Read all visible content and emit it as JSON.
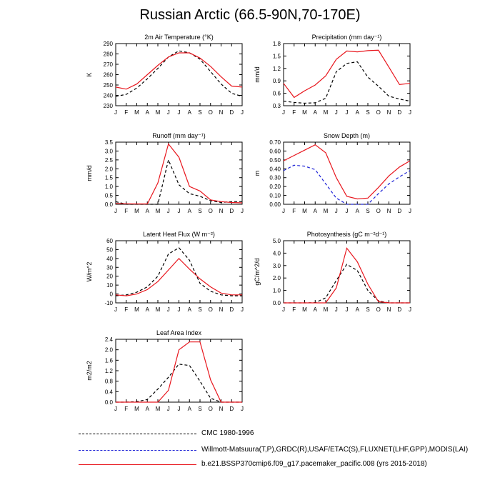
{
  "title": "Russian Arctic (66.5-90N,70-170E)",
  "colors": {
    "cmc": "#000000",
    "obs": "#1f24d6",
    "model": "#e8161d"
  },
  "legend": [
    {
      "key": "cmc",
      "label": "CMC 1980-1996",
      "dash": "dashed"
    },
    {
      "key": "obs",
      "label": "Willmott-Matsuura(T,P),GRDC(R),USAF/ETAC(S),FLUXNET(LHF,GPP),MODIS(LAI)",
      "dash": "dashed"
    },
    {
      "key": "model",
      "label": "b.e21.BSSP370cmip6.f09_g17.pacemaker_pacific.008 (yrs 2015-2018)",
      "dash": "solid"
    }
  ],
  "chart_data": [
    {
      "type": "line",
      "title": "2m Air Temperature (°K)",
      "ylabel": "K",
      "ylim": [
        230,
        290
      ],
      "yticks": [
        "230",
        "240",
        "250",
        "260",
        "270",
        "280",
        "290"
      ],
      "x": [
        "J",
        "F",
        "M",
        "A",
        "M",
        "J",
        "J",
        "A",
        "S",
        "O",
        "N",
        "D",
        "J"
      ],
      "grid": false,
      "series": [
        {
          "key": "cmc",
          "values": [
            239,
            241,
            247,
            256,
            266,
            277,
            283,
            281,
            275,
            263,
            251,
            242,
            239
          ]
        },
        {
          "key": "model",
          "values": [
            248,
            246,
            251,
            260,
            269,
            277,
            281,
            281,
            276,
            268,
            258,
            249,
            248
          ]
        }
      ]
    },
    {
      "type": "line",
      "title": "Precipitation (mm day⁻¹)",
      "ylabel": "mm/d",
      "ylim": [
        0.3,
        1.8
      ],
      "yticks": [
        "0.3",
        "0.6",
        "0.9",
        "1.2",
        "1.5",
        "1.8"
      ],
      "x": [
        "J",
        "F",
        "M",
        "A",
        "M",
        "J",
        "J",
        "A",
        "S",
        "O",
        "N",
        "D",
        "J"
      ],
      "grid": false,
      "series": [
        {
          "key": "cmc",
          "values": [
            0.41,
            0.38,
            0.36,
            0.37,
            0.48,
            1.12,
            1.32,
            1.36,
            0.99,
            0.77,
            0.53,
            0.46,
            0.41
          ]
        },
        {
          "key": "model",
          "values": [
            0.84,
            0.5,
            0.66,
            0.8,
            1.02,
            1.42,
            1.62,
            1.6,
            1.63,
            1.64,
            1.23,
            0.81,
            0.84
          ]
        }
      ]
    },
    {
      "type": "line",
      "title": "Runoff (mm day⁻¹)",
      "ylabel": "mm/d",
      "ylim": [
        0,
        3.5
      ],
      "yticks": [
        "0.0",
        "0.5",
        "1.0",
        "1.5",
        "2.0",
        "2.5",
        "3.0",
        "3.5"
      ],
      "x": [
        "J",
        "F",
        "M",
        "A",
        "M",
        "J",
        "J",
        "A",
        "S",
        "O",
        "N",
        "D",
        "J"
      ],
      "grid": false,
      "series": [
        {
          "key": "cmc",
          "values": [
            0.15,
            0.0,
            0.0,
            0.0,
            0.0,
            2.5,
            1.1,
            0.6,
            0.45,
            0.2,
            0.1,
            0.15,
            0.15
          ]
        },
        {
          "key": "model",
          "values": [
            0.05,
            0.03,
            0.02,
            0.02,
            1.2,
            3.4,
            2.65,
            1.0,
            0.75,
            0.25,
            0.15,
            0.1,
            0.08
          ]
        }
      ]
    },
    {
      "type": "line",
      "title": "Snow Depth (m)",
      "ylabel": "m",
      "ylim": [
        0,
        0.7
      ],
      "yticks": [
        "0.00",
        "0.10",
        "0.20",
        "0.30",
        "0.40",
        "0.50",
        "0.60",
        "0.70"
      ],
      "x": [
        "J",
        "F",
        "M",
        "A",
        "M",
        "J",
        "J",
        "A",
        "S",
        "O",
        "N",
        "D",
        "J"
      ],
      "grid": false,
      "series": [
        {
          "key": "obs",
          "values": [
            0.38,
            0.44,
            0.43,
            0.39,
            0.23,
            0.07,
            0.0,
            0.0,
            0.0,
            0.12,
            0.23,
            0.31,
            0.38
          ]
        },
        {
          "key": "model",
          "values": [
            0.49,
            0.55,
            0.61,
            0.67,
            0.58,
            0.3,
            0.09,
            0.06,
            0.07,
            0.19,
            0.32,
            0.42,
            0.49
          ]
        }
      ]
    },
    {
      "type": "line",
      "title": "Latent Heat Flux (W m⁻²)",
      "ylabel": "W/m^2",
      "ylim": [
        -10,
        60
      ],
      "yticks": [
        "-10",
        "0",
        "10",
        "20",
        "30",
        "40",
        "50",
        "60"
      ],
      "x": [
        "J",
        "F",
        "M",
        "A",
        "M",
        "J",
        "J",
        "A",
        "S",
        "O",
        "N",
        "D",
        "J"
      ],
      "grid": false,
      "series": [
        {
          "key": "cmc",
          "values": [
            -2,
            -1,
            2,
            8,
            20,
            45,
            52,
            38,
            12,
            3,
            -1,
            -2,
            -2
          ]
        },
        {
          "key": "model",
          "values": [
            -1,
            -2,
            0,
            5,
            14,
            27,
            40,
            28,
            17,
            8,
            1,
            -1,
            -1
          ]
        }
      ]
    },
    {
      "type": "line",
      "title": "Photosynthesis (gC m⁻²d⁻¹)",
      "ylabel": "gC/m^2/d",
      "ylim": [
        0,
        5
      ],
      "yticks": [
        "0.0",
        "1.0",
        "2.0",
        "3.0",
        "4.0",
        "5.0"
      ],
      "x": [
        "J",
        "F",
        "M",
        "A",
        "M",
        "J",
        "J",
        "A",
        "S",
        "O",
        "N",
        "D",
        "J"
      ],
      "grid": false,
      "series": [
        {
          "key": "cmc",
          "values": [
            0.0,
            0.0,
            0.0,
            0.02,
            0.4,
            1.8,
            3.1,
            2.6,
            1.0,
            0.15,
            0.0,
            0.0,
            0.0
          ]
        },
        {
          "key": "model",
          "values": [
            0.0,
            0.0,
            0.0,
            0.0,
            0.0,
            1.2,
            4.4,
            3.3,
            1.5,
            0.1,
            0.0,
            0.0,
            0.0
          ]
        }
      ]
    },
    {
      "type": "line",
      "title": "Leaf Area Index",
      "ylabel": "m2/m2",
      "ylim": [
        0,
        2.4
      ],
      "yticks": [
        "0.0",
        "0.4",
        "0.8",
        "1.2",
        "1.6",
        "2.0",
        "2.4"
      ],
      "x": [
        "J",
        "F",
        "M",
        "A",
        "M",
        "J",
        "J",
        "A",
        "S",
        "O",
        "N",
        "D",
        "J"
      ],
      "grid": false,
      "series": [
        {
          "key": "cmc",
          "values": [
            0.0,
            0.0,
            0.02,
            0.1,
            0.5,
            0.95,
            1.45,
            1.4,
            0.8,
            0.15,
            0.0,
            0.0,
            0.0
          ]
        },
        {
          "key": "model",
          "values": [
            0.0,
            0.0,
            0.0,
            0.0,
            0.0,
            0.45,
            2.0,
            2.3,
            2.3,
            0.85,
            0.0,
            0.0,
            0.0
          ]
        }
      ]
    }
  ]
}
